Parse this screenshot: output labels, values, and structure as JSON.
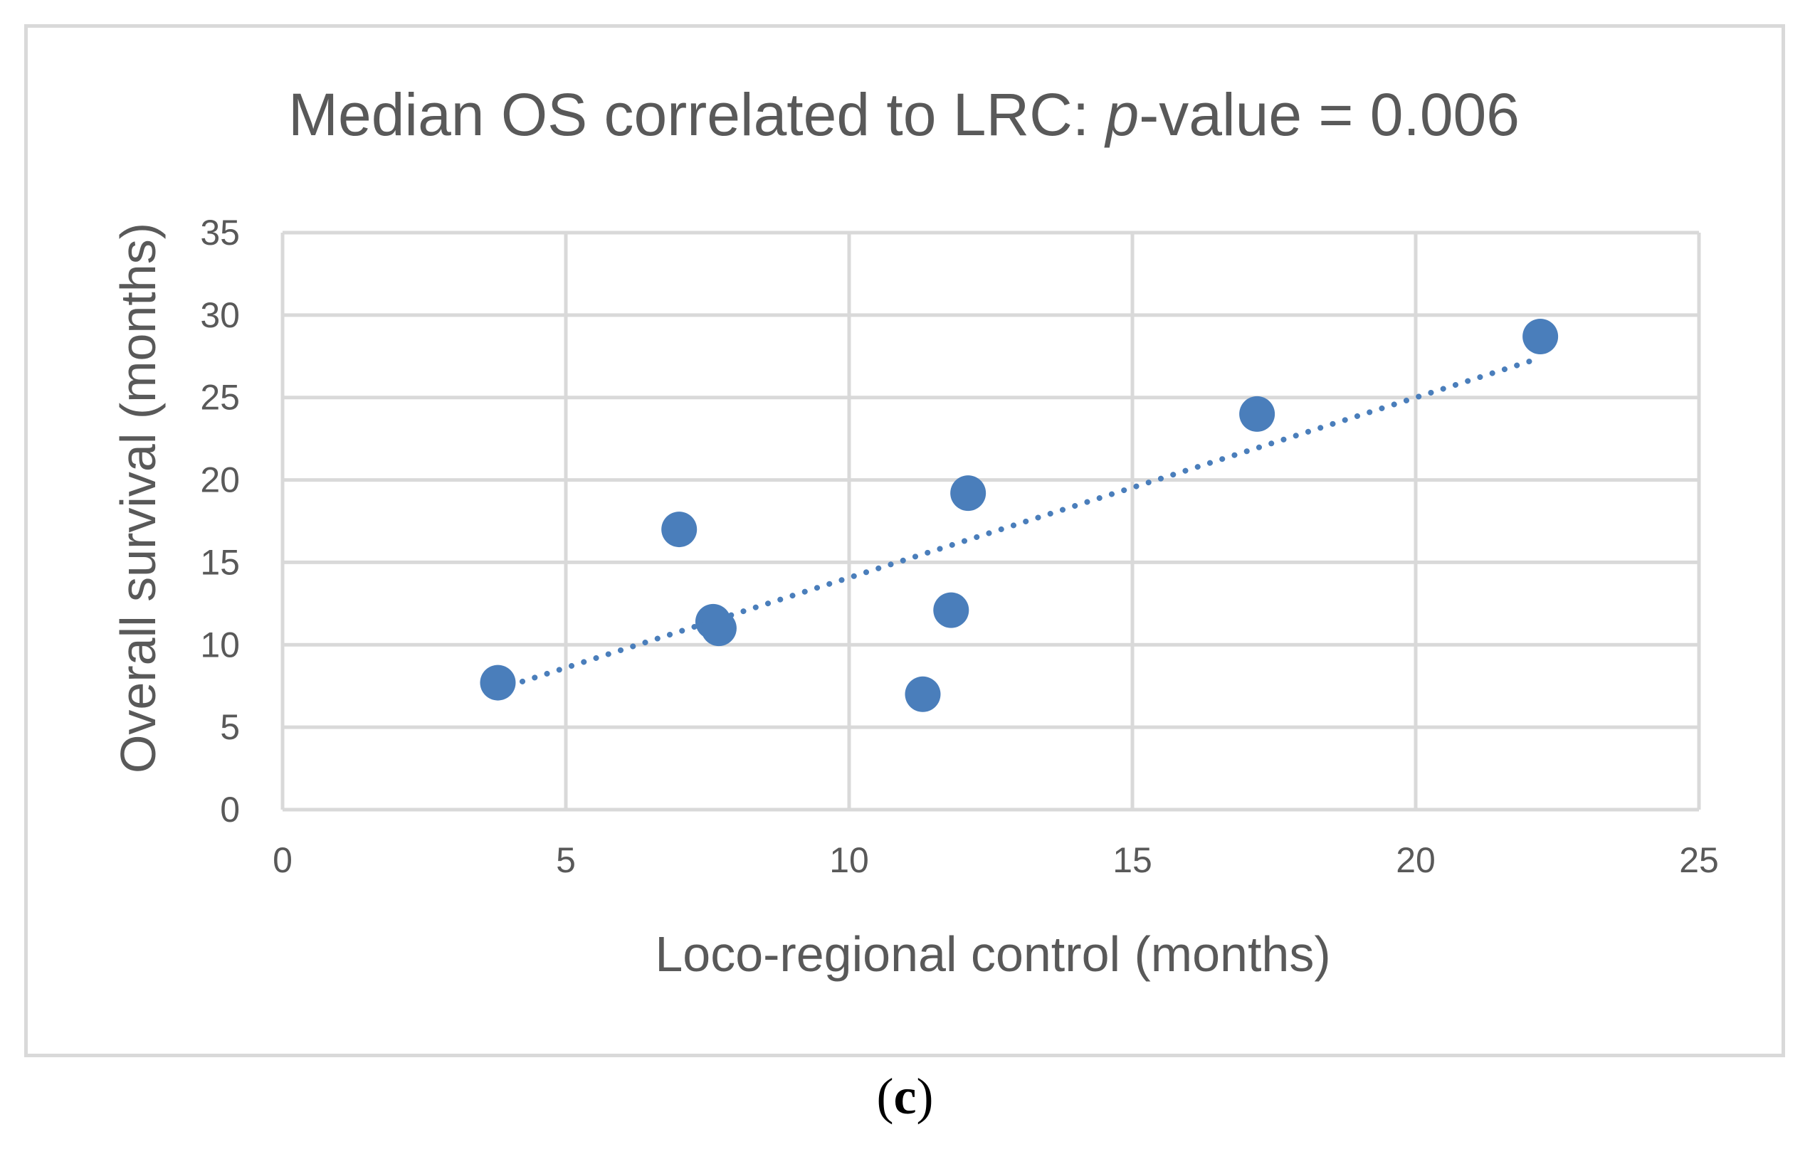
{
  "colors": {
    "marker": "#4A7EBB",
    "grid": "#D9D9D9",
    "text": "#595959",
    "trendline": "#4A7EBB"
  },
  "chart_data": {
    "type": "scatter",
    "title_prefix": "Median OS correlated to LRC: ",
    "title_italic": "p",
    "title_suffix": "-value = 0.006",
    "xlabel": "Loco-regional control (months)",
    "ylabel": "Overall survival (months)",
    "xlim": [
      0,
      25
    ],
    "ylim": [
      0,
      35
    ],
    "x_ticks": [
      0,
      5,
      10,
      15,
      20,
      25
    ],
    "y_ticks": [
      0,
      5,
      10,
      15,
      20,
      25,
      30,
      35
    ],
    "grid": true,
    "points": [
      {
        "x": 3.8,
        "y": 7.7
      },
      {
        "x": 7.0,
        "y": 17.0
      },
      {
        "x": 7.6,
        "y": 11.4
      },
      {
        "x": 7.7,
        "y": 11.0
      },
      {
        "x": 11.3,
        "y": 7.0
      },
      {
        "x": 11.8,
        "y": 12.1
      },
      {
        "x": 12.1,
        "y": 19.2
      },
      {
        "x": 17.2,
        "y": 24.0
      },
      {
        "x": 22.2,
        "y": 28.7
      }
    ],
    "trendline": {
      "type": "linear",
      "style": "dotted",
      "x_range": [
        3.8,
        22.2
      ],
      "y_range": [
        7.3,
        27.4
      ]
    }
  },
  "caption": {
    "label": "c"
  }
}
